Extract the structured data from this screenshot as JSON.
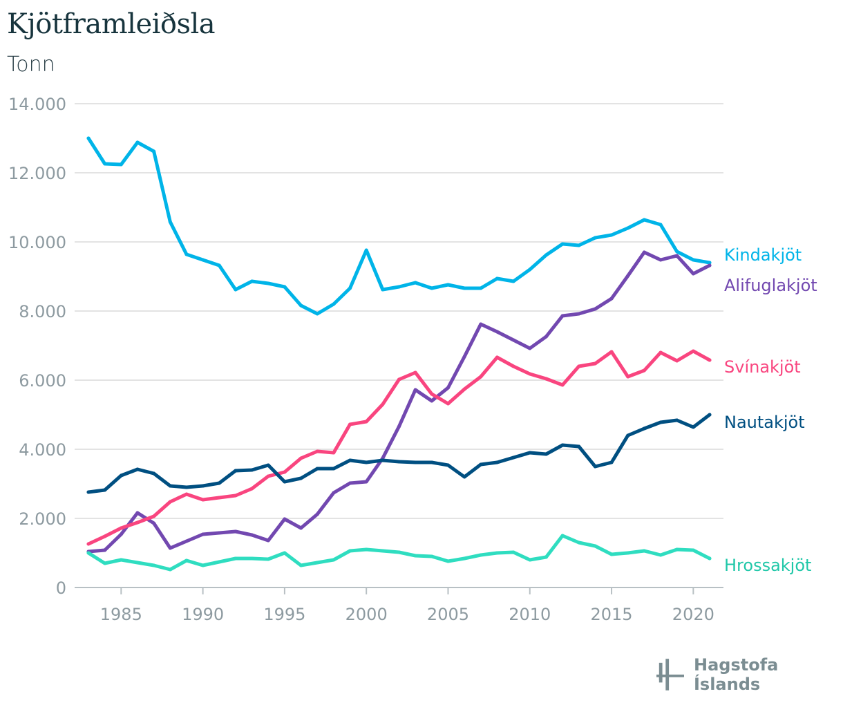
{
  "header": {
    "title": "Kjötframleiðsla",
    "subtitle": "Tonn"
  },
  "logo": {
    "text": "Hagstofa Íslands"
  },
  "chart_data": {
    "type": "line",
    "title": "Kjötframleiðsla",
    "ylabel": "Tonn",
    "xlabel": "",
    "x": [
      1983,
      1984,
      1985,
      1986,
      1987,
      1988,
      1989,
      1990,
      1991,
      1992,
      1993,
      1994,
      1995,
      1996,
      1997,
      1998,
      1999,
      2000,
      2001,
      2002,
      2003,
      2004,
      2005,
      2006,
      2007,
      2008,
      2009,
      2010,
      2011,
      2012,
      2013,
      2014,
      2015,
      2016,
      2017,
      2018,
      2019,
      2020,
      2021
    ],
    "xlim": [
      1983,
      2021
    ],
    "ylim": [
      0,
      14000
    ],
    "x_ticks": [
      "1985",
      "1990",
      "1995",
      "2000",
      "2005",
      "2010",
      "2015",
      "2020"
    ],
    "y_ticks": [
      "0",
      "2.000",
      "4.000",
      "6.000",
      "8.000",
      "10.000",
      "12.000",
      "14.000"
    ],
    "grid": "horizontal",
    "legend": "end-of-line labels",
    "series": [
      {
        "name": "Kindakjöt",
        "color": "#00b4e8",
        "values": [
          13000,
          12260,
          12240,
          12880,
          12620,
          10580,
          9640,
          9480,
          9320,
          8620,
          8860,
          8800,
          8700,
          8160,
          7920,
          8200,
          8660,
          9760,
          8620,
          8700,
          8820,
          8660,
          8760,
          8660,
          8660,
          8940,
          8860,
          9200,
          9620,
          9940,
          9900,
          10120,
          10200,
          10400,
          10640,
          10500,
          9720,
          9480,
          9400
        ]
      },
      {
        "name": "Alifuglakjöt",
        "color": "#7248b0",
        "values": [
          1040,
          1080,
          1540,
          2160,
          1860,
          1140,
          1340,
          1540,
          1580,
          1620,
          1520,
          1360,
          1980,
          1720,
          2120,
          2740,
          3020,
          3060,
          3740,
          4660,
          5720,
          5400,
          5780,
          6680,
          7620,
          7400,
          7160,
          6920,
          7260,
          7860,
          7920,
          8060,
          8360,
          9020,
          9700,
          9480,
          9600,
          9080,
          9320
        ]
      },
      {
        "name": "Svínakjöt",
        "color": "#f9457f",
        "values": [
          1260,
          1480,
          1720,
          1880,
          2060,
          2480,
          2700,
          2540,
          2600,
          2660,
          2860,
          3220,
          3340,
          3740,
          3940,
          3900,
          4720,
          4800,
          5300,
          6020,
          6220,
          5600,
          5320,
          5740,
          6100,
          6660,
          6400,
          6180,
          6040,
          5860,
          6400,
          6480,
          6820,
          6100,
          6280,
          6800,
          6560,
          6840,
          6580
        ]
      },
      {
        "name": "Nautakjöt",
        "color": "#004f81",
        "values": [
          2760,
          2820,
          3240,
          3420,
          3300,
          2940,
          2900,
          2940,
          3020,
          3380,
          3400,
          3540,
          3060,
          3160,
          3440,
          3440,
          3680,
          3620,
          3680,
          3640,
          3620,
          3620,
          3540,
          3200,
          3560,
          3620,
          3760,
          3900,
          3860,
          4120,
          4080,
          3500,
          3620,
          4400,
          4600,
          4780,
          4840,
          4640,
          5000
        ]
      },
      {
        "name": "Hrossakjöt",
        "color": "#2fddc0",
        "label_color": "#1fc7a8",
        "values": [
          1000,
          700,
          800,
          720,
          640,
          520,
          780,
          640,
          740,
          840,
          840,
          820,
          1000,
          640,
          720,
          800,
          1060,
          1100,
          1060,
          1020,
          920,
          900,
          760,
          840,
          940,
          1000,
          1020,
          800,
          880,
          1500,
          1300,
          1200,
          960,
          1000,
          1060,
          940,
          1100,
          1080,
          840
        ]
      }
    ]
  }
}
